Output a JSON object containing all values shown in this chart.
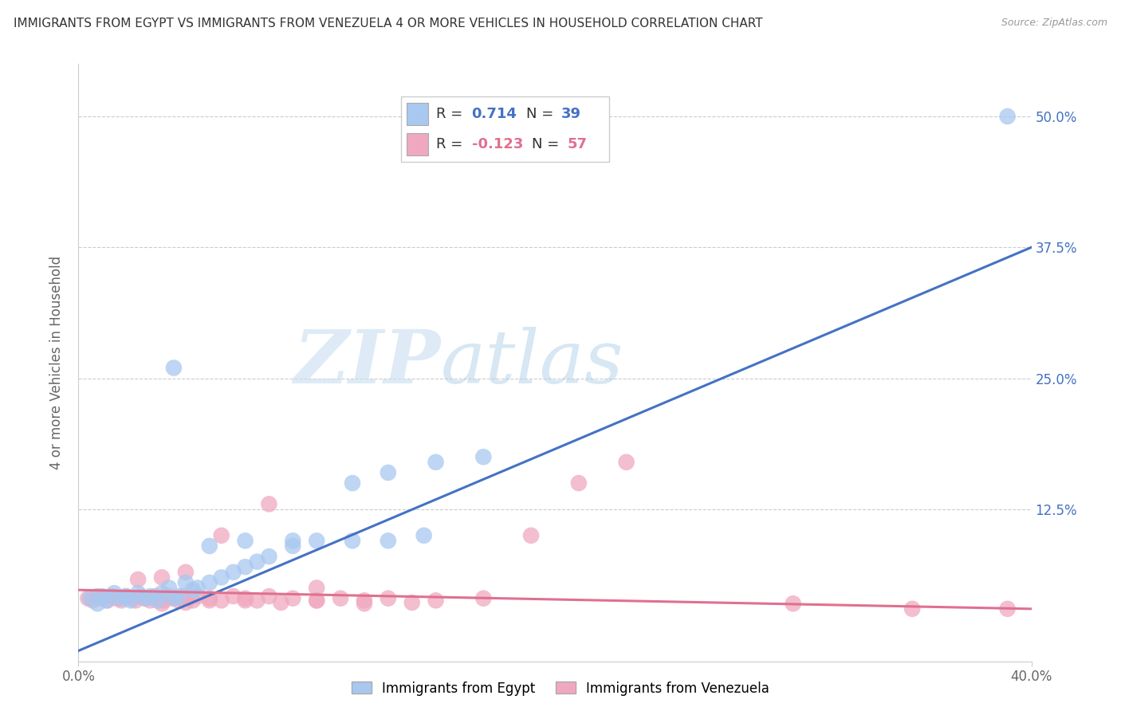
{
  "title": "IMMIGRANTS FROM EGYPT VS IMMIGRANTS FROM VENEZUELA 4 OR MORE VEHICLES IN HOUSEHOLD CORRELATION CHART",
  "source": "Source: ZipAtlas.com",
  "ylabel": "4 or more Vehicles in Household",
  "xlim": [
    0.0,
    0.4
  ],
  "ylim": [
    -0.02,
    0.55
  ],
  "xtick_labels": [
    "0.0%",
    "40.0%"
  ],
  "xticks": [
    0.0,
    0.4
  ],
  "ytick_labels": [
    "12.5%",
    "25.0%",
    "37.5%",
    "50.0%"
  ],
  "yticks": [
    0.125,
    0.25,
    0.375,
    0.5
  ],
  "color_egypt": "#a8c8f0",
  "color_venezuela": "#f0a8c0",
  "line_color_egypt": "#4472c4",
  "line_color_venezuela": "#e07090",
  "egypt_r": 0.714,
  "egypt_n": 39,
  "venezuela_r": -0.123,
  "venezuela_n": 57,
  "egypt_line_x": [
    0.0,
    0.4
  ],
  "egypt_line_y": [
    -0.01,
    0.375
  ],
  "venezuela_line_x": [
    0.0,
    0.4
  ],
  "venezuela_line_y": [
    0.048,
    0.03
  ],
  "egypt_x": [
    0.005,
    0.008,
    0.01,
    0.012,
    0.015,
    0.018,
    0.02,
    0.022,
    0.025,
    0.028,
    0.03,
    0.033,
    0.035,
    0.038,
    0.04,
    0.042,
    0.045,
    0.048,
    0.05,
    0.055,
    0.06,
    0.065,
    0.07,
    0.075,
    0.08,
    0.09,
    0.1,
    0.115,
    0.13,
    0.145,
    0.055,
    0.07,
    0.09,
    0.115,
    0.13,
    0.15,
    0.17,
    0.04,
    0.39
  ],
  "egypt_y": [
    0.04,
    0.035,
    0.042,
    0.038,
    0.045,
    0.04,
    0.042,
    0.038,
    0.045,
    0.04,
    0.042,
    0.038,
    0.045,
    0.05,
    0.04,
    0.042,
    0.055,
    0.048,
    0.05,
    0.055,
    0.06,
    0.065,
    0.07,
    0.075,
    0.08,
    0.09,
    0.095,
    0.095,
    0.095,
    0.1,
    0.09,
    0.095,
    0.095,
    0.15,
    0.16,
    0.17,
    0.175,
    0.26,
    0.5
  ],
  "venezuela_x": [
    0.004,
    0.006,
    0.008,
    0.01,
    0.012,
    0.014,
    0.016,
    0.018,
    0.02,
    0.022,
    0.024,
    0.026,
    0.028,
    0.03,
    0.032,
    0.034,
    0.036,
    0.038,
    0.04,
    0.042,
    0.044,
    0.046,
    0.048,
    0.05,
    0.055,
    0.06,
    0.065,
    0.07,
    0.075,
    0.08,
    0.09,
    0.1,
    0.11,
    0.12,
    0.13,
    0.15,
    0.17,
    0.19,
    0.21,
    0.23,
    0.035,
    0.045,
    0.055,
    0.07,
    0.085,
    0.1,
    0.12,
    0.14,
    0.3,
    0.35,
    0.025,
    0.035,
    0.045,
    0.06,
    0.08,
    0.1,
    0.39
  ],
  "venezuela_y": [
    0.04,
    0.038,
    0.042,
    0.04,
    0.038,
    0.042,
    0.04,
    0.038,
    0.042,
    0.04,
    0.038,
    0.042,
    0.04,
    0.038,
    0.042,
    0.04,
    0.038,
    0.042,
    0.04,
    0.038,
    0.042,
    0.04,
    0.038,
    0.042,
    0.04,
    0.038,
    0.042,
    0.04,
    0.038,
    0.042,
    0.04,
    0.038,
    0.04,
    0.038,
    0.04,
    0.038,
    0.04,
    0.1,
    0.15,
    0.17,
    0.035,
    0.036,
    0.038,
    0.038,
    0.036,
    0.038,
    0.035,
    0.036,
    0.035,
    0.03,
    0.058,
    0.06,
    0.065,
    0.1,
    0.13,
    0.05,
    0.03
  ]
}
